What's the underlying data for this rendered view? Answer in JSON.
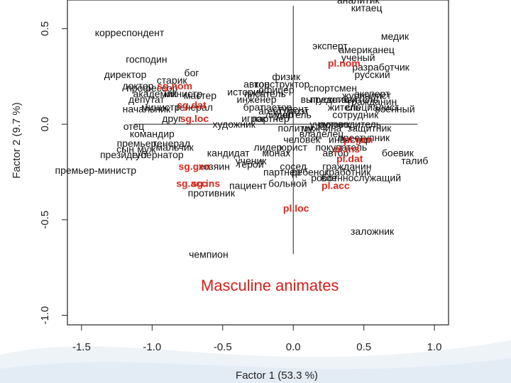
{
  "slide": {
    "caption": "Masculine animates"
  },
  "chart_data": {
    "type": "scatter",
    "xlabel": "Factor 1  (53.3 %)",
    "ylabel": "Factor 2  (9.7 %)",
    "xlim": [
      -1.6,
      1.1
    ],
    "ylim": [
      -1.05,
      0.65
    ],
    "x_ticks": [
      -1.5,
      -1.0,
      -0.5,
      0.0,
      0.5,
      1.0
    ],
    "x_tick_labels": [
      "-1.5",
      "-1.0",
      "-0.5",
      "0.0",
      "0.5",
      "1.0"
    ],
    "y_ticks": [
      -1.0,
      -0.5,
      0.0,
      0.5
    ],
    "y_tick_labels": [
      "-1.0",
      "-0.5",
      "0.0",
      "0.5"
    ],
    "reference_lines": {
      "x": 0.0,
      "y": 0.0
    },
    "colors": {
      "words": "#111111",
      "cases": "#d42a1e",
      "axes": "#222222"
    },
    "word_points": [
      {
        "label": "аналитик",
        "x": 0.46,
        "y": 0.65
      },
      {
        "label": "китаец",
        "x": 0.52,
        "y": 0.61
      },
      {
        "label": "корреспондент",
        "x": -1.16,
        "y": 0.48
      },
      {
        "label": "медик",
        "x": 0.72,
        "y": 0.46
      },
      {
        "label": "эксперт",
        "x": 0.26,
        "y": 0.41
      },
      {
        "label": "американец",
        "x": 0.52,
        "y": 0.39
      },
      {
        "label": "ученый",
        "x": 0.46,
        "y": 0.35
      },
      {
        "label": "господин",
        "x": -1.04,
        "y": 0.34
      },
      {
        "label": "разработчик",
        "x": 0.62,
        "y": 0.3
      },
      {
        "label": "бог",
        "x": -0.72,
        "y": 0.27
      },
      {
        "label": "директор",
        "x": -1.19,
        "y": 0.26
      },
      {
        "label": "русский",
        "x": 0.56,
        "y": 0.26
      },
      {
        "label": "физик",
        "x": -0.05,
        "y": 0.25
      },
      {
        "label": "старик",
        "x": -0.86,
        "y": 0.23
      },
      {
        "label": "автор",
        "x": -0.26,
        "y": 0.21
      },
      {
        "label": "конструктор",
        "x": -0.08,
        "y": 0.21
      },
      {
        "label": "доктор",
        "x": -1.1,
        "y": 0.2
      },
      {
        "label": "профессор",
        "x": -1.0,
        "y": 0.19
      },
      {
        "label": "спортсмен",
        "x": 0.28,
        "y": 0.19
      },
      {
        "label": "офицер",
        "x": -0.12,
        "y": 0.18
      },
      {
        "label": "историк",
        "x": -0.34,
        "y": 0.17
      },
      {
        "label": "академик",
        "x": -0.98,
        "y": 0.16
      },
      {
        "label": "министр",
        "x": -0.78,
        "y": 0.16
      },
      {
        "label": "писатель",
        "x": -0.2,
        "y": 0.16
      },
      {
        "label": "эксперт",
        "x": 0.56,
        "y": 0.16
      },
      {
        "label": "мастер",
        "x": -0.66,
        "y": 0.15
      },
      {
        "label": "журналист",
        "x": 0.52,
        "y": 0.15
      },
      {
        "label": "депутат",
        "x": -1.04,
        "y": 0.13
      },
      {
        "label": "инженер",
        "x": -0.26,
        "y": 0.13
      },
      {
        "label": "выпускник",
        "x": 0.22,
        "y": 0.13
      },
      {
        "label": "представитель",
        "x": 0.36,
        "y": 0.13
      },
      {
        "label": "гражданин",
        "x": 0.56,
        "y": 0.12
      },
      {
        "label": "брат",
        "x": -0.28,
        "y": 0.09
      },
      {
        "label": "пастор",
        "x": -0.12,
        "y": 0.09
      },
      {
        "label": "студент",
        "x": -0.02,
        "y": 0.08
      },
      {
        "label": "житель",
        "x": 0.36,
        "y": 0.09
      },
      {
        "label": "специалист",
        "x": 0.56,
        "y": 0.09
      },
      {
        "label": "начальник",
        "x": -1.04,
        "y": 0.08
      },
      {
        "label": "министр",
        "x": -0.94,
        "y": 0.09
      },
      {
        "label": "генерал",
        "x": -0.7,
        "y": 0.09
      },
      {
        "label": "агент",
        "x": -0.16,
        "y": 0.07
      },
      {
        "label": "поэт",
        "x": 0.04,
        "y": 0.07
      },
      {
        "label": "военный",
        "x": 0.72,
        "y": 0.08
      },
      {
        "label": "лидер",
        "x": -0.1,
        "y": 0.05
      },
      {
        "label": "учитель",
        "x": 0.0,
        "y": 0.05
      },
      {
        "label": "сотрудник",
        "x": 0.44,
        "y": 0.05
      },
      {
        "label": "друг",
        "x": -0.86,
        "y": 0.03
      },
      {
        "label": "игрок",
        "x": -0.28,
        "y": 0.03
      },
      {
        "label": "партнер",
        "x": -0.16,
        "y": 0.03
      },
      {
        "label": "художник",
        "x": -0.42,
        "y": 0.0
      },
      {
        "label": "участник",
        "x": 0.26,
        "y": 0.0
      },
      {
        "label": "руководитель",
        "x": 0.4,
        "y": 0.0
      },
      {
        "label": "отец",
        "x": -1.13,
        "y": -0.01
      },
      {
        "label": "политик",
        "x": 0.02,
        "y": -0.02
      },
      {
        "label": "мужчина",
        "x": 0.2,
        "y": -0.02
      },
      {
        "label": "защитник",
        "x": 0.54,
        "y": -0.02
      },
      {
        "label": "командир",
        "x": -1.0,
        "y": -0.05
      },
      {
        "label": "владелец",
        "x": 0.2,
        "y": -0.05
      },
      {
        "label": "человек",
        "x": 0.06,
        "y": -0.08
      },
      {
        "label": "инвестор",
        "x": 0.4,
        "y": -0.08
      },
      {
        "label": "преступник",
        "x": 0.5,
        "y": -0.07
      },
      {
        "label": "премьер",
        "x": -1.11,
        "y": -0.1
      },
      {
        "label": "генерал",
        "x": -0.86,
        "y": -0.1
      },
      {
        "label": "сын",
        "x": -1.19,
        "y": -0.13
      },
      {
        "label": "муж",
        "x": -1.04,
        "y": -0.13
      },
      {
        "label": "мальчик",
        "x": -0.84,
        "y": -0.12
      },
      {
        "label": "лидер",
        "x": -0.18,
        "y": -0.12
      },
      {
        "label": "юрист",
        "x": 0.0,
        "y": -0.12
      },
      {
        "label": "покупатель",
        "x": 0.34,
        "y": -0.12
      },
      {
        "label": "президент",
        "x": -1.2,
        "y": -0.16
      },
      {
        "label": "губернатор",
        "x": -0.96,
        "y": -0.16
      },
      {
        "label": "кандидат",
        "x": -0.46,
        "y": -0.15
      },
      {
        "label": "монах",
        "x": -0.12,
        "y": -0.15
      },
      {
        "label": "автор",
        "x": 0.3,
        "y": -0.15
      },
      {
        "label": "боевик",
        "x": 0.74,
        "y": -0.15
      },
      {
        "label": "ученик",
        "x": -0.3,
        "y": -0.19
      },
      {
        "label": "талиб",
        "x": 0.86,
        "y": -0.19
      },
      {
        "label": "хозяин",
        "x": -0.56,
        "y": -0.22
      },
      {
        "label": "герой",
        "x": -0.3,
        "y": -0.21
      },
      {
        "label": "сосед",
        "x": 0.0,
        "y": -0.22
      },
      {
        "label": "гражданин",
        "x": 0.38,
        "y": -0.22
      },
      {
        "label": "премьер-министр",
        "x": -1.4,
        "y": -0.24
      },
      {
        "label": "партнер",
        "x": -0.08,
        "y": -0.25
      },
      {
        "label": "ребенок",
        "x": 0.12,
        "y": -0.25
      },
      {
        "label": "работник",
        "x": 0.4,
        "y": -0.25
      },
      {
        "label": "военнослужащий",
        "x": 0.48,
        "y": -0.28
      },
      {
        "label": "робот",
        "x": 0.22,
        "y": -0.28
      },
      {
        "label": "пациент",
        "x": -0.32,
        "y": -0.32
      },
      {
        "label": "больной",
        "x": -0.04,
        "y": -0.31
      },
      {
        "label": "противник",
        "x": -0.58,
        "y": -0.36
      },
      {
        "label": "заложник",
        "x": 0.56,
        "y": -0.56
      },
      {
        "label": "чемпион",
        "x": -0.6,
        "y": -0.68
      }
    ],
    "case_points": [
      {
        "label": "pl.nom",
        "x": 0.36,
        "y": 0.32
      },
      {
        "label": "sg.nom",
        "x": -0.84,
        "y": 0.2
      },
      {
        "label": "sg.dat",
        "x": -0.72,
        "y": 0.1
      },
      {
        "label": "sg.loc",
        "x": -0.7,
        "y": 0.03
      },
      {
        "label": "pl.gen",
        "x": 0.46,
        "y": -0.08
      },
      {
        "label": "pl.ins",
        "x": 0.38,
        "y": -0.13
      },
      {
        "label": "pl.dat",
        "x": 0.4,
        "y": -0.18
      },
      {
        "label": "sg.gen",
        "x": -0.7,
        "y": -0.22
      },
      {
        "label": "pl.acc",
        "x": 0.3,
        "y": -0.32
      },
      {
        "label": "sg.ins",
        "x": -0.62,
        "y": -0.31
      },
      {
        "label": "sg.acc",
        "x": -0.72,
        "y": -0.31
      },
      {
        "label": "pl.loc",
        "x": 0.02,
        "y": -0.44
      }
    ]
  }
}
